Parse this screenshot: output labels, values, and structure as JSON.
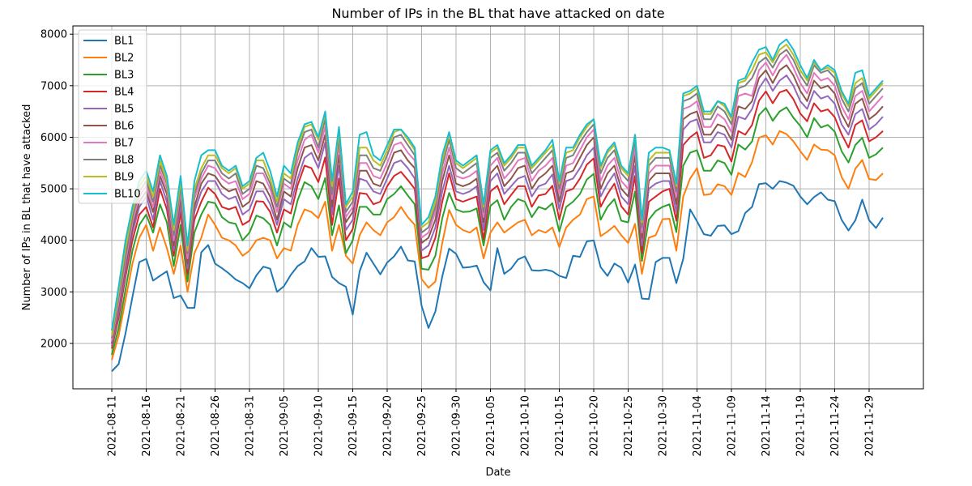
{
  "chart_data": {
    "type": "line",
    "title": "Number of IPs in the BL that have attacked on date",
    "xlabel": "Date",
    "ylabel": "Number of IPs in BL that have attacked",
    "x_start": "2021-08-11",
    "x_tick_labels": [
      "2021-08-11",
      "2021-08-16",
      "2021-08-21",
      "2021-08-26",
      "2021-08-31",
      "2021-09-05",
      "2021-09-10",
      "2021-09-15",
      "2021-09-20",
      "2021-09-25",
      "2021-09-30",
      "2021-10-05",
      "2021-10-10",
      "2021-10-15",
      "2021-10-20",
      "2021-10-25",
      "2021-10-30",
      "2021-11-04",
      "2021-11-09",
      "2021-11-14",
      "2021-11-19",
      "2021-11-24",
      "2021-11-29"
    ],
    "y_ticks": [
      2000,
      3000,
      4000,
      5000,
      6000,
      7000,
      8000
    ],
    "ylim": [
      1120,
      8160
    ],
    "grid": true,
    "legend_position": "top-left",
    "series": [
      {
        "name": "BL1",
        "color": "#1f77b4",
        "values": [
          1460,
          1600,
          2200,
          2900,
          3580,
          3640,
          3220,
          3310,
          3400,
          2880,
          2930,
          2690,
          2690,
          3770,
          3910,
          3550,
          3460,
          3360,
          3240,
          3170,
          3070,
          3320,
          3490,
          3450,
          3000,
          3110,
          3330,
          3500,
          3590,
          3850,
          3680,
          3690,
          3290,
          3170,
          3100,
          2560,
          3400,
          3760,
          3550,
          3340,
          3570,
          3690,
          3880,
          3610,
          3590,
          2730,
          2300,
          2620,
          3300,
          3840,
          3740,
          3470,
          3480,
          3510,
          3190,
          3030,
          3850,
          3350,
          3450,
          3630,
          3690,
          3420,
          3410,
          3430,
          3400,
          3310,
          3270,
          3700,
          3680,
          3980,
          4000,
          3480,
          3310,
          3550,
          3470,
          3180,
          3530,
          2870,
          2860,
          3580,
          3660,
          3660,
          3170,
          3640,
          4600,
          4370,
          4120,
          4090,
          4280,
          4290,
          4120,
          4180,
          4530,
          4650,
          5090,
          5110,
          5000,
          5150,
          5120,
          5060,
          4850,
          4700,
          4840,
          4930,
          4790,
          4760,
          4400,
          4190,
          4390,
          4790,
          4390,
          4240,
          4440
        ]
      },
      {
        "name": "BL2",
        "color": "#ff7f0e",
        "values": [
          1680,
          2150,
          2850,
          3550,
          4050,
          4300,
          3800,
          4250,
          3850,
          3350,
          3900,
          3000,
          3750,
          4050,
          4500,
          4300,
          4050,
          4000,
          3900,
          3700,
          3800,
          4000,
          4050,
          4000,
          3650,
          3850,
          3800,
          4300,
          4600,
          4550,
          4430,
          4750,
          3800,
          4300,
          3700,
          3550,
          4100,
          4350,
          4200,
          4100,
          4350,
          4450,
          4650,
          4450,
          4300,
          3250,
          3080,
          3200,
          3950,
          4590,
          4300,
          4200,
          4150,
          4250,
          3650,
          4150,
          4350,
          4150,
          4250,
          4350,
          4400,
          4100,
          4200,
          4150,
          4250,
          3870,
          4250,
          4400,
          4500,
          4800,
          4850,
          4080,
          4170,
          4280,
          4100,
          3950,
          4320,
          3350,
          4050,
          4100,
          4410,
          4420,
          3800,
          4850,
          5200,
          5400,
          4880,
          4900,
          5090,
          5050,
          4880,
          5310,
          5230,
          5520,
          5990,
          6040,
          5860,
          6120,
          6060,
          5920,
          5730,
          5560,
          5860,
          5760,
          5750,
          5650,
          5230,
          5000,
          5390,
          5560,
          5190,
          5170,
          5300
        ]
      },
      {
        "name": "BL3",
        "color": "#2ca02c",
        "values": [
          1780,
          2300,
          3050,
          3800,
          4300,
          4500,
          4150,
          4700,
          4350,
          3500,
          4300,
          3200,
          4150,
          4500,
          4750,
          4720,
          4450,
          4350,
          4320,
          4000,
          4150,
          4480,
          4430,
          4300,
          3900,
          4350,
          4250,
          4780,
          5130,
          5050,
          4800,
          5210,
          4100,
          4680,
          3750,
          4000,
          4650,
          4650,
          4500,
          4500,
          4800,
          4900,
          5050,
          4870,
          4700,
          3450,
          3430,
          3700,
          4430,
          4920,
          4600,
          4550,
          4560,
          4620,
          3900,
          4670,
          4780,
          4400,
          4650,
          4800,
          4750,
          4450,
          4650,
          4600,
          4720,
          4170,
          4650,
          4750,
          4900,
          5180,
          5290,
          4400,
          4650,
          4800,
          4380,
          4350,
          4950,
          3600,
          4400,
          4570,
          4650,
          4700,
          4160,
          5450,
          5700,
          5750,
          5350,
          5350,
          5550,
          5500,
          5270,
          5860,
          5760,
          5920,
          6430,
          6570,
          6320,
          6500,
          6580,
          6380,
          6220,
          6000,
          6370,
          6190,
          6240,
          6110,
          5730,
          5510,
          5850,
          5990,
          5600,
          5670,
          5800
        ]
      },
      {
        "name": "BL4",
        "color": "#d62728",
        "values": [
          1900,
          2500,
          3300,
          4000,
          4500,
          4650,
          4250,
          5000,
          4600,
          3700,
          4550,
          3350,
          4400,
          4750,
          5020,
          4900,
          4650,
          4600,
          4650,
          4300,
          4380,
          4760,
          4750,
          4550,
          4150,
          4600,
          4520,
          5070,
          5450,
          5400,
          5130,
          5610,
          4300,
          5200,
          4000,
          4220,
          4920,
          4900,
          4700,
          4750,
          5050,
          5250,
          5330,
          5170,
          5000,
          3650,
          3700,
          4050,
          4750,
          5300,
          4800,
          4750,
          4800,
          4850,
          4020,
          4950,
          5060,
          4700,
          4880,
          5050,
          5050,
          4650,
          4870,
          4900,
          5060,
          4400,
          4950,
          5000,
          5200,
          5470,
          5590,
          4650,
          4900,
          5100,
          4660,
          4500,
          5250,
          3750,
          4750,
          4850,
          4950,
          5000,
          4380,
          5850,
          6000,
          6100,
          5600,
          5650,
          5850,
          5820,
          5530,
          6120,
          6050,
          6240,
          6710,
          6890,
          6660,
          6870,
          6920,
          6740,
          6460,
          6310,
          6660,
          6500,
          6540,
          6390,
          6060,
          5800,
          6240,
          6330,
          5920,
          6000,
          6120
        ]
      },
      {
        "name": "BL5",
        "color": "#9467bd",
        "values": [
          1950,
          2600,
          3400,
          4150,
          4650,
          4850,
          4400,
          5150,
          4750,
          3800,
          4700,
          3450,
          4550,
          4950,
          5150,
          5150,
          4900,
          4800,
          4850,
          4500,
          4600,
          4950,
          4950,
          4700,
          4300,
          4800,
          4700,
          5200,
          5600,
          5700,
          5400,
          5900,
          4500,
          5450,
          4200,
          4400,
          5200,
          5150,
          4950,
          4900,
          5200,
          5500,
          5550,
          5400,
          5200,
          3800,
          3900,
          4250,
          4950,
          5450,
          4950,
          4900,
          4950,
          5050,
          4200,
          5150,
          5300,
          4900,
          5050,
          5200,
          5250,
          4850,
          5050,
          5100,
          5280,
          4600,
          5150,
          5200,
          5400,
          5650,
          5800,
          4850,
          5100,
          5300,
          4850,
          4700,
          5450,
          3900,
          5000,
          5100,
          5150,
          5150,
          4550,
          6150,
          6300,
          6350,
          5900,
          5900,
          6100,
          6050,
          5800,
          6400,
          6350,
          6550,
          6950,
          7150,
          6900,
          7100,
          7200,
          7000,
          6700,
          6550,
          6900,
          6750,
          6800,
          6650,
          6250,
          6050,
          6450,
          6550,
          6150,
          6250,
          6400
        ]
      },
      {
        "name": "BL6",
        "color": "#8c564b",
        "values": [
          2000,
          2700,
          3500,
          4250,
          4750,
          4950,
          4550,
          5250,
          4900,
          3900,
          4850,
          3550,
          4650,
          5100,
          5300,
          5250,
          5050,
          4950,
          5000,
          4650,
          4750,
          5150,
          5100,
          4850,
          4400,
          4950,
          4850,
          5400,
          5800,
          5850,
          5550,
          6050,
          4650,
          5650,
          4350,
          4550,
          5350,
          5350,
          5100,
          5050,
          5350,
          5700,
          5750,
          5550,
          5400,
          3950,
          4050,
          4400,
          5150,
          5650,
          5100,
          5050,
          5100,
          5200,
          4350,
          5300,
          5450,
          5050,
          5200,
          5400,
          5450,
          5000,
          5200,
          5300,
          5450,
          4750,
          5300,
          5350,
          5600,
          5850,
          6000,
          5000,
          5300,
          5450,
          5000,
          4850,
          5650,
          4050,
          5150,
          5300,
          5300,
          5300,
          4700,
          6350,
          6450,
          6500,
          6050,
          6050,
          6250,
          6200,
          5950,
          6600,
          6550,
          6700,
          7150,
          7300,
          7050,
          7300,
          7400,
          7200,
          6900,
          6700,
          7100,
          6950,
          7000,
          6850,
          6450,
          6200,
          6650,
          6750,
          6350,
          6450,
          6600
        ]
      },
      {
        "name": "BL7",
        "color": "#e377c2",
        "values": [
          2050,
          2800,
          3600,
          4350,
          4850,
          5050,
          4650,
          5350,
          5000,
          4000,
          4950,
          3650,
          4800,
          5200,
          5450,
          5400,
          5200,
          5100,
          5150,
          4800,
          4900,
          5300,
          5300,
          5000,
          4550,
          5100,
          5000,
          5550,
          5950,
          6050,
          5700,
          6200,
          4800,
          5850,
          4450,
          4650,
          5500,
          5500,
          5250,
          5200,
          5500,
          5850,
          5900,
          5700,
          5550,
          4050,
          4150,
          4550,
          5300,
          5800,
          5250,
          5200,
          5250,
          5350,
          4450,
          5450,
          5600,
          5200,
          5350,
          5550,
          5600,
          5150,
          5350,
          5450,
          5600,
          4900,
          5450,
          5500,
          5750,
          6000,
          6150,
          5150,
          5450,
          5600,
          5150,
          5000,
          5800,
          4150,
          5300,
          5450,
          5450,
          5450,
          4850,
          6550,
          6600,
          6700,
          6200,
          6200,
          6450,
          6350,
          6100,
          6800,
          6850,
          6800,
          7300,
          7450,
          7200,
          7450,
          7600,
          7350,
          7050,
          6850,
          7250,
          7100,
          7150,
          7000,
          6600,
          6350,
          6800,
          6900,
          6500,
          6650,
          6800
        ]
      },
      {
        "name": "BL8",
        "color": "#7f7f7f",
        "values": [
          2100,
          2900,
          3700,
          4450,
          4950,
          5150,
          4750,
          5450,
          5100,
          4100,
          5050,
          3750,
          4900,
          5300,
          5550,
          5550,
          5300,
          5200,
          5300,
          4900,
          5000,
          5450,
          5400,
          5100,
          4650,
          5200,
          5100,
          5700,
          6100,
          6150,
          5800,
          6350,
          4900,
          6000,
          4550,
          4750,
          5650,
          5650,
          5400,
          5350,
          5650,
          6000,
          6050,
          5850,
          5650,
          4150,
          4250,
          4650,
          5450,
          5950,
          5400,
          5300,
          5400,
          5500,
          4550,
          5600,
          5700,
          5350,
          5500,
          5700,
          5700,
          5300,
          5450,
          5600,
          5750,
          5000,
          5600,
          5650,
          5900,
          6100,
          6250,
          5300,
          5600,
          5750,
          5300,
          5150,
          5950,
          4250,
          5450,
          5600,
          5600,
          5600,
          4950,
          6700,
          6750,
          6850,
          6350,
          6350,
          6600,
          6500,
          6250,
          6950,
          7000,
          7150,
          7450,
          7550,
          7350,
          7600,
          7700,
          7500,
          7200,
          7000,
          7400,
          7250,
          7300,
          7150,
          6750,
          6500,
          6950,
          7050,
          6650,
          6800,
          6950
        ]
      },
      {
        "name": "BL9",
        "color": "#bcbd22",
        "values": [
          2150,
          3000,
          3850,
          4550,
          5050,
          5250,
          4850,
          5550,
          5150,
          4200,
          5150,
          3800,
          5000,
          5400,
          5650,
          5650,
          5400,
          5300,
          5400,
          5000,
          5100,
          5550,
          5550,
          5200,
          4750,
          5300,
          5200,
          5800,
          6200,
          6250,
          5950,
          6450,
          5050,
          6100,
          4650,
          4850,
          5800,
          5800,
          5550,
          5450,
          5750,
          6100,
          6150,
          5950,
          5750,
          4250,
          4350,
          4750,
          5550,
          6050,
          5500,
          5400,
          5500,
          5600,
          4650,
          5700,
          5800,
          5450,
          5600,
          5800,
          5800,
          5400,
          5550,
          5700,
          5850,
          5100,
          5700,
          5750,
          6000,
          6200,
          6350,
          5400,
          5700,
          5850,
          5400,
          5250,
          6050,
          4350,
          5550,
          5700,
          5700,
          5700,
          5050,
          6800,
          6850,
          6950,
          6450,
          6450,
          6700,
          6600,
          6350,
          7050,
          7100,
          7300,
          7600,
          7650,
          7450,
          7700,
          7800,
          7600,
          7300,
          7100,
          7450,
          7300,
          7350,
          7250,
          6850,
          6600,
          7050,
          7150,
          6750,
          6900,
          7050
        ]
      },
      {
        "name": "BL10",
        "color": "#17becf",
        "values": [
          2250,
          3100,
          4000,
          4650,
          5150,
          5350,
          4950,
          5650,
          5250,
          4300,
          5250,
          3900,
          5150,
          5650,
          5750,
          5750,
          5450,
          5350,
          5450,
          5050,
          5150,
          5600,
          5700,
          5350,
          4850,
          5450,
          5300,
          5900,
          6250,
          6300,
          6000,
          6500,
          5150,
          6200,
          4700,
          4950,
          6050,
          6100,
          5650,
          5550,
          5850,
          6150,
          6150,
          6000,
          5800,
          4300,
          4450,
          4850,
          5650,
          6100,
          5550,
          5450,
          5550,
          5650,
          4700,
          5750,
          5850,
          5500,
          5650,
          5850,
          5850,
          5450,
          5600,
          5750,
          5950,
          5150,
          5800,
          5800,
          6050,
          6250,
          6350,
          5450,
          5750,
          5900,
          5450,
          5300,
          6050,
          4400,
          5700,
          5800,
          5800,
          5750,
          5100,
          6850,
          6900,
          7000,
          6500,
          6500,
          6700,
          6650,
          6400,
          7100,
          7150,
          7450,
          7700,
          7750,
          7500,
          7800,
          7900,
          7700,
          7400,
          7150,
          7500,
          7300,
          7400,
          7300,
          6900,
          6650,
          7250,
          7300,
          6800,
          6950,
          7100
        ]
      }
    ]
  }
}
